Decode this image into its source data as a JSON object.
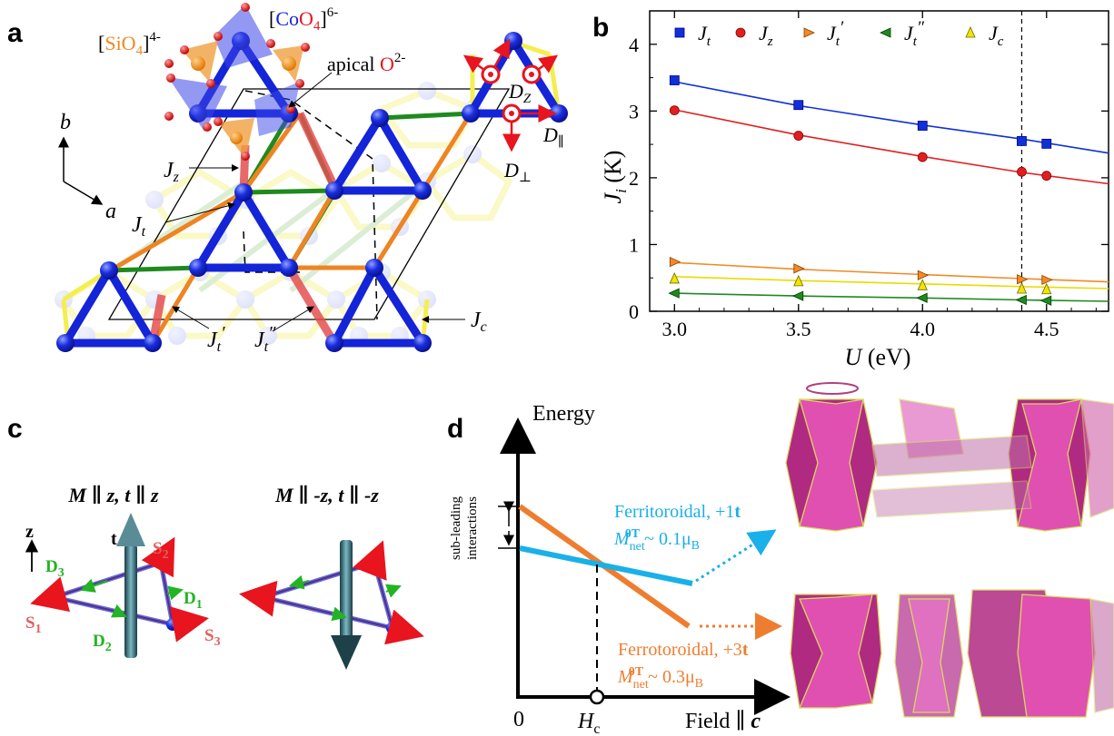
{
  "panels": {
    "a": {
      "letter": "a",
      "labels": {
        "sio4_pre": "[",
        "sio4_el": "SiO",
        "sio4_sub": "4",
        "sio4_post": "]",
        "sio4_charge": "4-",
        "coo4_pre": "[",
        "coo4_co": "Co",
        "coo4_o": "O",
        "coo4_sub": "4",
        "coo4_post": "]",
        "coo4_charge": "6-",
        "apical_text": "apical ",
        "apical_o": "O",
        "apical_charge": "2-",
        "axis_b": "b",
        "axis_a": "a",
        "jz": "J",
        "jz_sub": "z",
        "jt": "J",
        "jt_sub": "t",
        "jtp": "J",
        "jtp_sub": "t",
        "jtp_prime": "′",
        "jtpp": "J",
        "jtpp_sub": "t",
        "jtpp_prime": "″",
        "jc": "J",
        "jc_sub": "c",
        "dz": "D",
        "dz_sub": "Z",
        "dpar": "D",
        "dpar_sub": "∥",
        "dperp": "D",
        "dperp_sub": "⊥"
      }
    },
    "b": {
      "letter": "b",
      "ylabel_main": "J",
      "ylabel_sub": "i",
      "ylabel_unit": " (K)",
      "xlabel_main": "U",
      "xlabel_unit": " (eV)"
    },
    "c": {
      "letter": "c",
      "left_title": "M ∥ z, t ∥ z",
      "right_title": "M ∥ -z, t ∥ -z",
      "axis_z": "z",
      "t_label": "t",
      "s1": "S",
      "s1_sub": "1",
      "s2": "S",
      "s2_sub": "2",
      "s3": "S",
      "s3_sub": "3",
      "d1": "D",
      "d1_sub": "1",
      "d2": "D",
      "d2_sub": "2",
      "d3": "D",
      "d3_sub": "3"
    },
    "d": {
      "letter": "d",
      "ylabel": "Energy",
      "xlabel_main": "Field ∥ ",
      "xlabel_c": "c",
      "origin": "0",
      "hc_main": "H",
      "hc_sub": "c",
      "subleading_line1": "sub-leading",
      "subleading_line2": "interactions",
      "ferri_title": "Ferritoroidal, +1",
      "ferri_t": "t",
      "ferri_m": "M",
      "ferri_m_sub": "net",
      "ferri_m_sup": "0T",
      "ferri_value": " ~ 0.1μ",
      "ferri_value_sub": "B",
      "ferro_title": "Ferrotoroidal, +3",
      "ferro_t": "t",
      "ferro_m": "M",
      "ferro_m_sub": "net",
      "ferro_m_sup": "0T",
      "ferro_value": " ~ 0.3μ",
      "ferro_value_sub": "B",
      "colors": {
        "ferri": "#1ab0e8",
        "ferro": "#ee7d2f"
      }
    }
  },
  "chart_data": {
    "type": "scatter",
    "title": "",
    "xlabel": "U (eV)",
    "ylabel": "J_i (K)",
    "xlim": [
      2.9,
      4.75
    ],
    "ylim": [
      0,
      4.5
    ],
    "xticks": [
      3.0,
      3.5,
      4.0,
      4.5
    ],
    "xtick_labels": [
      "3.0",
      "3.5",
      "4.0",
      "4.5"
    ],
    "yticks": [
      0,
      1,
      2,
      3,
      4
    ],
    "ytick_labels": [
      "0",
      "1",
      "2",
      "3",
      "4"
    ],
    "vline": 4.4,
    "legend_position": "top",
    "series": [
      {
        "name": "J_t",
        "label": "J",
        "sub": "t",
        "prime": "",
        "marker": "square",
        "color": "#1030d8",
        "x": [
          3.0,
          3.5,
          4.0,
          4.4,
          4.5
        ],
        "values": [
          3.46,
          3.09,
          2.78,
          2.55,
          2.51
        ],
        "fit": [
          [
            3.0,
            3.44
          ],
          [
            3.5,
            3.08
          ],
          [
            4.0,
            2.79
          ],
          [
            4.4,
            2.58
          ],
          [
            4.75,
            2.37
          ]
        ]
      },
      {
        "name": "J_z",
        "label": "J",
        "sub": "z",
        "prime": "",
        "marker": "circle",
        "color": "#e02020",
        "x": [
          3.0,
          3.5,
          4.0,
          4.4,
          4.5
        ],
        "values": [
          3.01,
          2.63,
          2.31,
          2.09,
          2.03
        ],
        "fit": [
          [
            3.0,
            3.02
          ],
          [
            3.5,
            2.64
          ],
          [
            4.0,
            2.32
          ],
          [
            4.4,
            2.08
          ],
          [
            4.75,
            1.91
          ]
        ]
      },
      {
        "name": "J_t'",
        "label": "J",
        "sub": "t",
        "prime": "′",
        "marker": "tri-right",
        "color": "#f08a24",
        "x": [
          3.0,
          3.5,
          4.0,
          4.4,
          4.5
        ],
        "values": [
          0.74,
          0.64,
          0.54,
          0.48,
          0.47
        ],
        "fit": [
          [
            3.0,
            0.73
          ],
          [
            3.5,
            0.63
          ],
          [
            4.0,
            0.55
          ],
          [
            4.4,
            0.49
          ],
          [
            4.75,
            0.44
          ]
        ]
      },
      {
        "name": "J_t''",
        "label": "J",
        "sub": "t",
        "prime": "″",
        "marker": "tri-left",
        "color": "#1e8a1e",
        "x": [
          3.0,
          3.5,
          4.0,
          4.4,
          4.5
        ],
        "values": [
          0.27,
          0.23,
          0.2,
          0.17,
          0.16
        ],
        "fit": [
          [
            3.0,
            0.27
          ],
          [
            3.5,
            0.23
          ],
          [
            4.0,
            0.2
          ],
          [
            4.4,
            0.17
          ],
          [
            4.75,
            0.15
          ]
        ]
      },
      {
        "name": "J_c",
        "label": "J",
        "sub": "c",
        "prime": "",
        "marker": "tri-up",
        "color": "#f2e600",
        "x": [
          3.0,
          3.5,
          4.0,
          4.4,
          4.5
        ],
        "values": [
          0.49,
          0.45,
          0.39,
          0.34,
          0.33
        ],
        "fit": [
          [
            3.0,
            0.52
          ],
          [
            3.5,
            0.46
          ],
          [
            4.0,
            0.41
          ],
          [
            4.4,
            0.37
          ],
          [
            4.75,
            0.34
          ]
        ]
      }
    ]
  }
}
